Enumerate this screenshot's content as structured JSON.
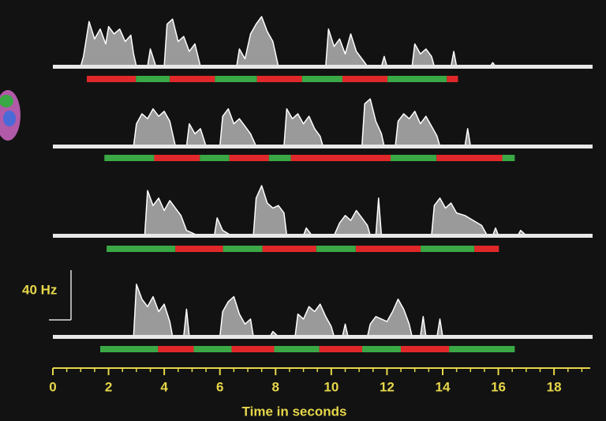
{
  "chart_data": {
    "type": "area",
    "x_label": "Time in seconds",
    "xlim": [
      0,
      19.3
    ],
    "xticks": [
      0,
      2,
      4,
      6,
      8,
      10,
      12,
      14,
      16,
      18
    ],
    "xminorticks": [
      0.5,
      1,
      1.5,
      2.5,
      3,
      3.5,
      4.5,
      5,
      5.5,
      6.5,
      7,
      7.5,
      8.5,
      9,
      9.5,
      10.5,
      11,
      11.5,
      12.5,
      13,
      13.5,
      14.5,
      15,
      15.5,
      16.5,
      17,
      17.5,
      18.5,
      19
    ],
    "ylim": [
      0,
      40
    ],
    "scale_bar": {
      "value": 40,
      "label": "40 Hz"
    },
    "axis_color": "#e6d64a",
    "series": [
      {
        "color": "#9a9a9a",
        "x": [
          1.0,
          1.1,
          1.3,
          1.5,
          1.7,
          1.9,
          2.0,
          2.2,
          2.4,
          2.6,
          2.8,
          2.9,
          3.0,
          3.4,
          3.5,
          3.7,
          4.0,
          4.1,
          4.3,
          4.5,
          4.7,
          4.9,
          5.1,
          5.3,
          6.6,
          6.7,
          6.9,
          7.1,
          7.3,
          7.5,
          7.7,
          7.9,
          8.1,
          9.8,
          9.9,
          10.1,
          10.3,
          10.5,
          10.7,
          10.9,
          11.1,
          11.3,
          11.8,
          11.9,
          12.0,
          12.9,
          13.0,
          13.2,
          13.4,
          13.6,
          13.7,
          14.3,
          14.4,
          14.5,
          15.7,
          15.8,
          15.9
        ],
        "values": [
          0,
          8,
          36,
          22,
          30,
          18,
          32,
          26,
          30,
          20,
          25,
          10,
          0,
          0,
          14,
          0,
          0,
          34,
          38,
          20,
          24,
          12,
          18,
          0,
          0,
          14,
          6,
          26,
          34,
          40,
          28,
          20,
          0,
          0,
          30,
          16,
          22,
          10,
          26,
          12,
          6,
          0,
          0,
          8,
          0,
          0,
          18,
          10,
          14,
          8,
          0,
          0,
          12,
          0,
          0,
          3,
          0
        ],
        "segments": {
          "edges": [
            1.22,
            2.98,
            4.2,
            5.82,
            7.33,
            8.95,
            10.4,
            12.02,
            14.15,
            14.55
          ],
          "colors": [
            "#e0282a",
            "#3aa845",
            "#e0282a",
            "#3aa845",
            "#e0282a",
            "#3aa845",
            "#e0282a",
            "#3aa845",
            "#e0282a"
          ]
        }
      },
      {
        "color": "#9a9a9a",
        "x": [
          2.9,
          3.0,
          3.2,
          3.4,
          3.6,
          3.8,
          4.0,
          4.2,
          4.4,
          4.8,
          4.9,
          5.1,
          5.3,
          5.5,
          6.0,
          6.1,
          6.3,
          6.5,
          6.7,
          6.9,
          7.1,
          7.3,
          8.3,
          8.4,
          8.6,
          8.8,
          9.0,
          9.2,
          9.4,
          9.6,
          9.7,
          11.1,
          11.2,
          11.4,
          11.6,
          11.8,
          11.9,
          12.3,
          12.4,
          12.6,
          12.8,
          13.0,
          13.2,
          13.4,
          13.6,
          13.8,
          13.9,
          14.8,
          14.9,
          15.0
        ],
        "values": [
          0,
          18,
          26,
          22,
          30,
          24,
          28,
          20,
          0,
          0,
          18,
          10,
          14,
          0,
          0,
          24,
          30,
          18,
          22,
          16,
          10,
          0,
          0,
          30,
          22,
          26,
          18,
          24,
          14,
          8,
          0,
          0,
          34,
          38,
          20,
          10,
          0,
          0,
          20,
          26,
          22,
          28,
          18,
          24,
          16,
          8,
          0,
          0,
          14,
          0
        ],
        "segments": {
          "edges": [
            1.85,
            3.64,
            5.28,
            6.34,
            7.76,
            8.55,
            12.13,
            13.78,
            16.14,
            16.59
          ],
          "colors": [
            "#3aa845",
            "#e0282a",
            "#3aa845",
            "#e0282a",
            "#3aa845",
            "#e0282a",
            "#3aa845",
            "#e0282a",
            "#3aa845"
          ]
        }
      },
      {
        "color": "#9a9a9a",
        "x": [
          3.3,
          3.4,
          3.6,
          3.8,
          4.0,
          4.2,
          4.4,
          4.6,
          4.8,
          5.2,
          5.8,
          5.9,
          6.1,
          6.4,
          7.2,
          7.3,
          7.5,
          7.7,
          7.9,
          8.1,
          8.3,
          8.4,
          9.0,
          9.1,
          9.3,
          10.1,
          10.3,
          10.5,
          10.7,
          10.9,
          11.1,
          11.3,
          11.4,
          11.6,
          11.7,
          11.8,
          13.6,
          13.7,
          13.9,
          14.1,
          14.3,
          14.5,
          14.8,
          15.1,
          15.4,
          15.6,
          15.8,
          15.9,
          16.0,
          16.7,
          16.8,
          17.0
        ],
        "values": [
          0,
          36,
          24,
          30,
          20,
          28,
          22,
          16,
          4,
          0,
          0,
          14,
          4,
          0,
          0,
          30,
          40,
          26,
          22,
          24,
          18,
          0,
          0,
          6,
          0,
          0,
          10,
          16,
          12,
          20,
          14,
          8,
          0,
          0,
          30,
          0,
          0,
          24,
          30,
          22,
          26,
          18,
          16,
          12,
          8,
          0,
          0,
          6,
          0,
          0,
          4,
          0
        ],
        "segments": {
          "edges": [
            1.93,
            4.4,
            6.11,
            7.53,
            9.46,
            10.88,
            13.21,
            15.14,
            16.02
          ],
          "colors": [
            "#3aa845",
            "#e0282a",
            "#3aa845",
            "#e0282a",
            "#3aa845",
            "#e0282a",
            "#3aa845",
            "#e0282a"
          ]
        }
      },
      {
        "color": "#9a9a9a",
        "x": [
          2.9,
          3.0,
          3.2,
          3.4,
          3.6,
          3.8,
          4.0,
          4.2,
          4.3,
          4.7,
          4.8,
          4.9,
          6.0,
          6.1,
          6.3,
          6.5,
          6.7,
          6.9,
          7.1,
          7.2,
          7.8,
          7.9,
          8.1,
          8.7,
          8.8,
          9.0,
          9.2,
          9.4,
          9.6,
          9.8,
          10.0,
          10.1,
          10.4,
          10.5,
          10.6,
          11.3,
          11.4,
          11.6,
          11.8,
          12.0,
          12.2,
          12.4,
          12.6,
          12.8,
          12.9,
          13.2,
          13.3,
          13.4,
          13.8,
          13.9,
          14.0
        ],
        "values": [
          0,
          42,
          30,
          24,
          32,
          20,
          26,
          12,
          0,
          0,
          22,
          0,
          0,
          20,
          28,
          32,
          18,
          10,
          14,
          0,
          0,
          4,
          0,
          0,
          18,
          14,
          24,
          20,
          26,
          16,
          8,
          0,
          0,
          10,
          0,
          0,
          10,
          16,
          14,
          12,
          20,
          30,
          22,
          10,
          0,
          0,
          16,
          0,
          0,
          14,
          0
        ],
        "segments": {
          "edges": [
            1.7,
            3.78,
            5.06,
            6.42,
            7.95,
            9.57,
            11.11,
            12.5,
            14.23,
            16.59
          ],
          "colors": [
            "#3aa845",
            "#e0282a",
            "#3aa845",
            "#e0282a",
            "#3aa845",
            "#e0282a",
            "#3aa845",
            "#e0282a",
            "#3aa845"
          ]
        }
      }
    ]
  }
}
